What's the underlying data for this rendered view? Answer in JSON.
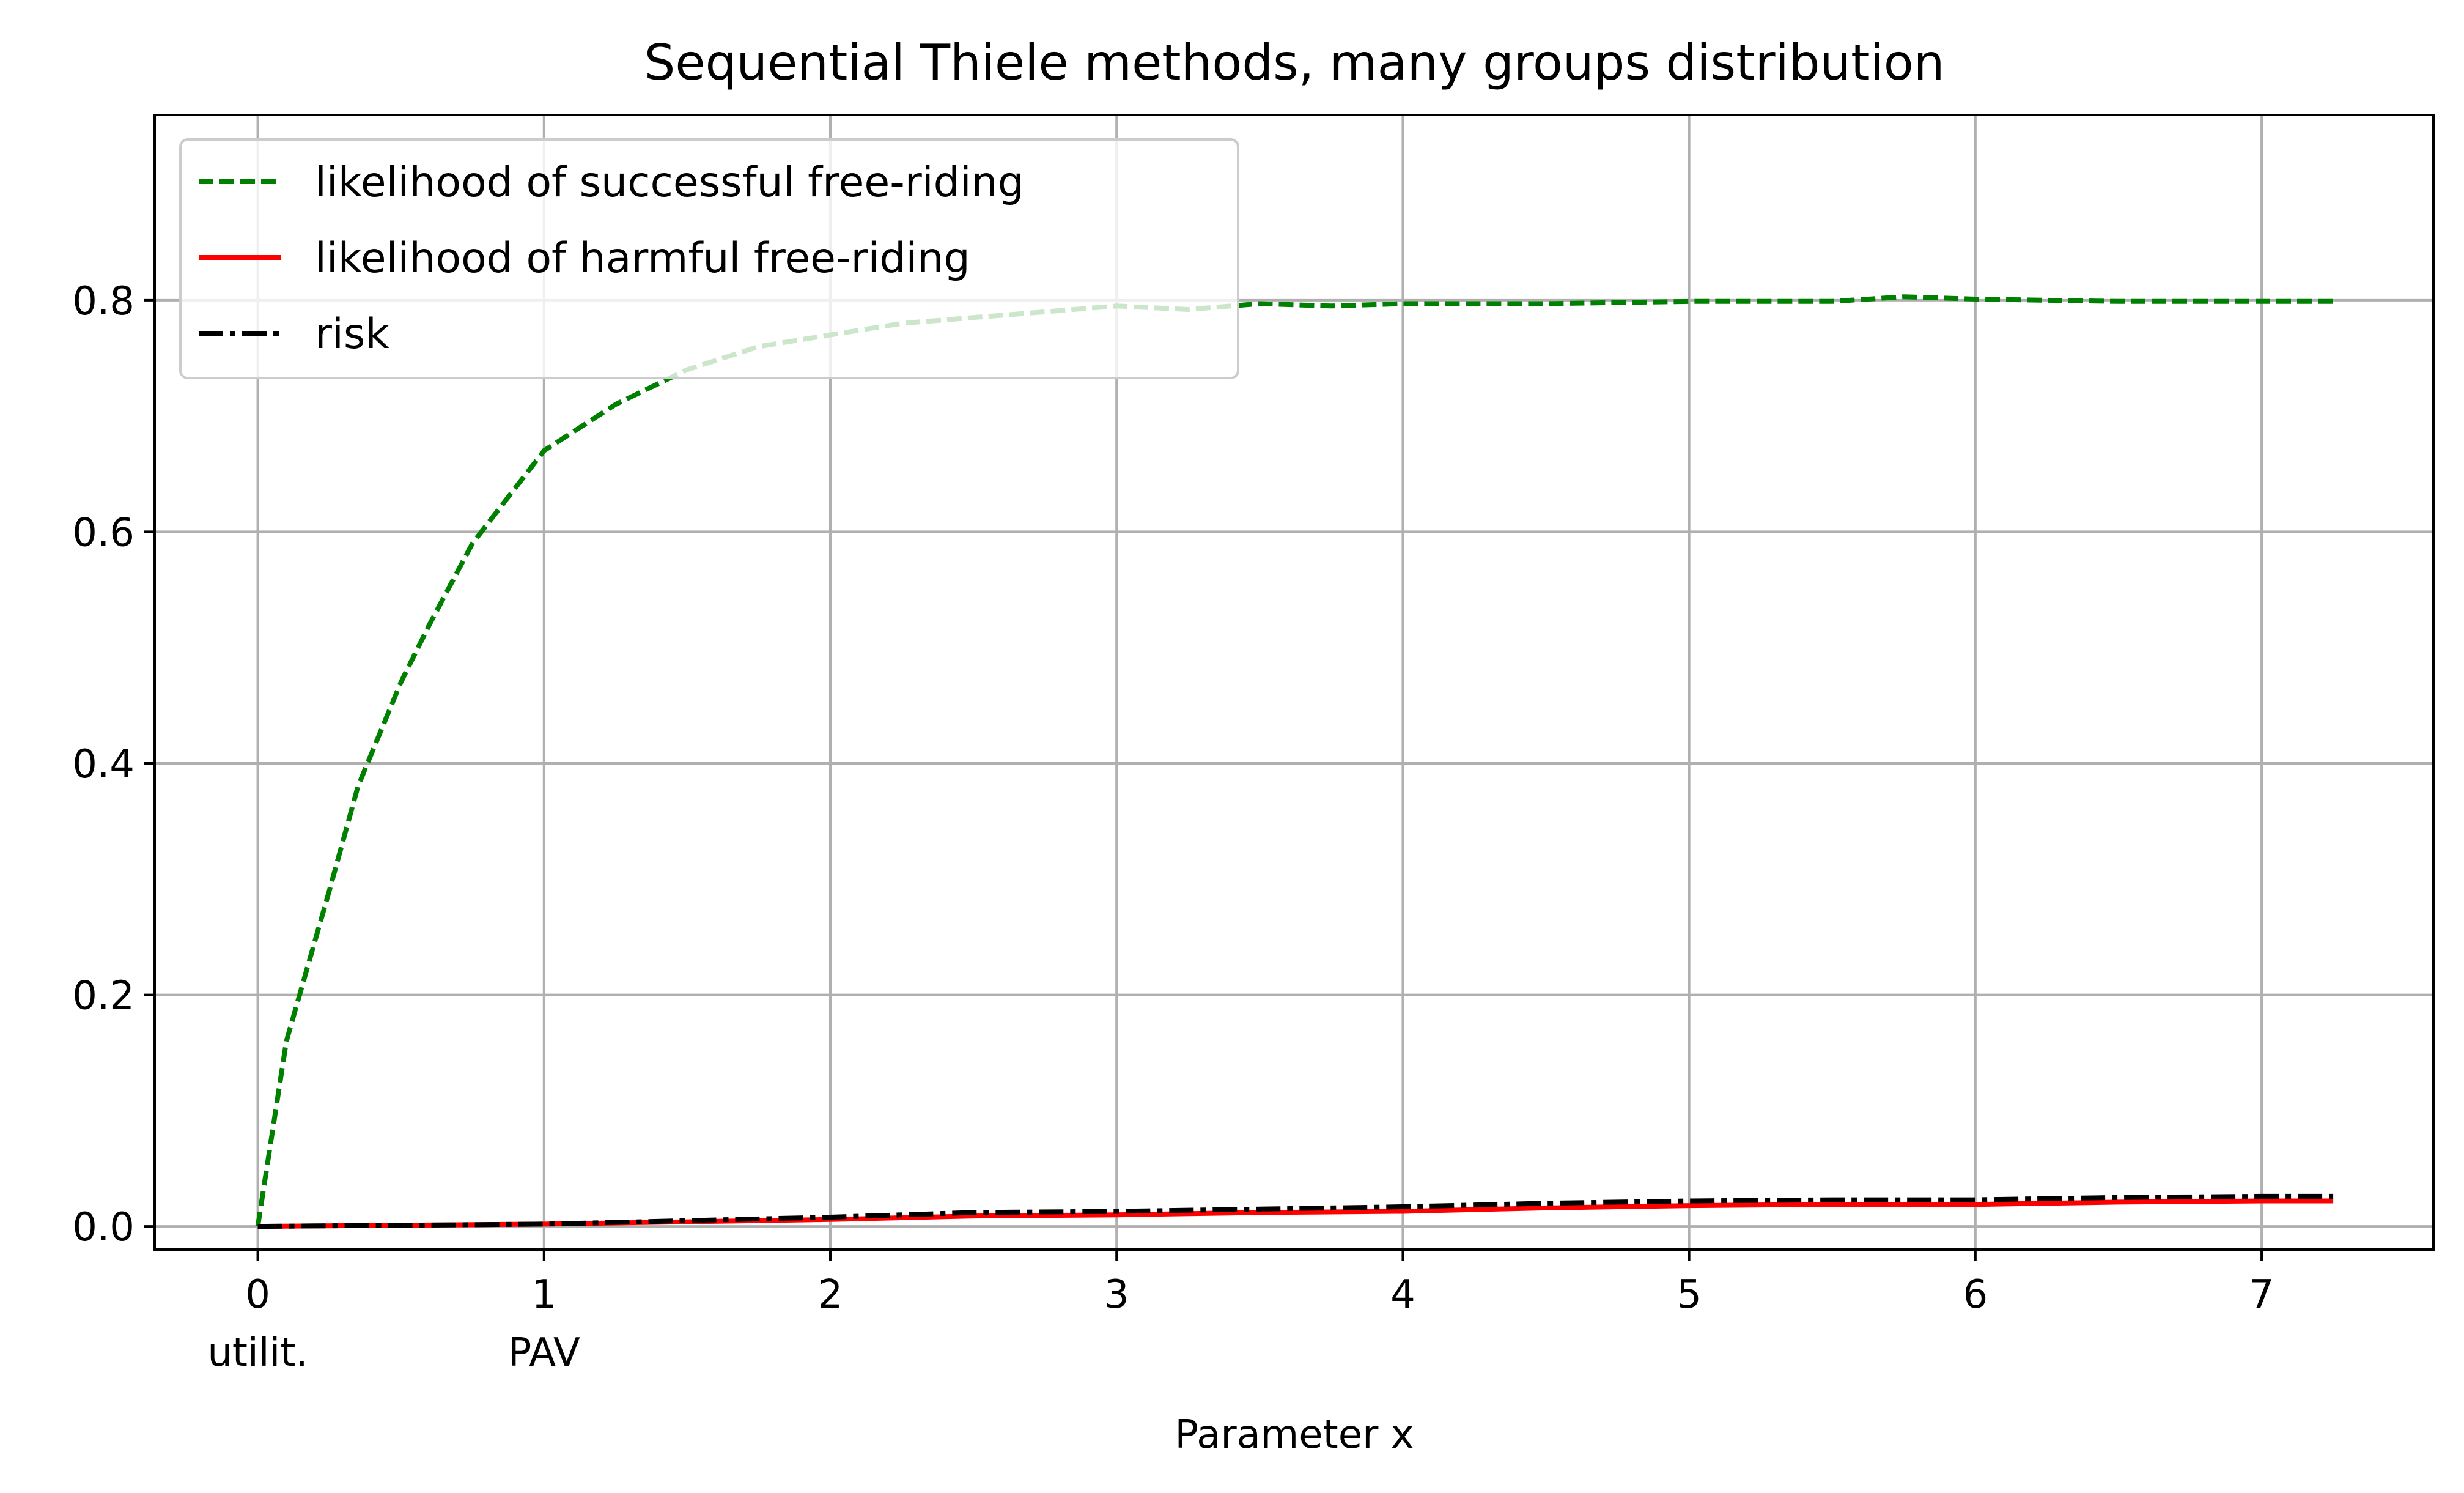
{
  "chart_data": {
    "type": "line",
    "title": "Sequential Thiele methods, many groups distribution",
    "xlabel": "Parameter x",
    "ylabel": "",
    "xlim": [
      -0.36,
      7.6
    ],
    "ylim": [
      -0.02,
      0.96
    ],
    "xticks": [
      0,
      1,
      2,
      3,
      4,
      5,
      6,
      7
    ],
    "xtick_labels": [
      "0",
      "1",
      "2",
      "3",
      "4",
      "5",
      "6",
      "7"
    ],
    "xtick_sublabels": [
      {
        "x": 0,
        "label": "utilit."
      },
      {
        "x": 1,
        "label": "PAV"
      }
    ],
    "yticks": [
      0.0,
      0.2,
      0.4,
      0.6,
      0.8
    ],
    "ytick_labels": [
      "0.0",
      "0.2",
      "0.4",
      "0.6",
      "0.8"
    ],
    "grid": true,
    "legend_position": "top-left",
    "series": [
      {
        "name": "likelihood of successful free-riding",
        "color": "#008000",
        "style": "dashed",
        "x": [
          0,
          0.1,
          0.25,
          0.35,
          0.5,
          0.6,
          0.75,
          1.0,
          1.25,
          1.5,
          1.75,
          2.0,
          2.25,
          2.5,
          2.75,
          3.0,
          3.25,
          3.5,
          3.75,
          4.0,
          4.5,
          5.0,
          5.5,
          5.75,
          6.0,
          6.5,
          7.0,
          7.25
        ],
        "y": [
          0.0,
          0.16,
          0.29,
          0.38,
          0.47,
          0.52,
          0.59,
          0.67,
          0.71,
          0.74,
          0.76,
          0.77,
          0.78,
          0.785,
          0.79,
          0.795,
          0.792,
          0.797,
          0.795,
          0.797,
          0.797,
          0.799,
          0.799,
          0.803,
          0.801,
          0.799,
          0.799,
          0.799
        ]
      },
      {
        "name": "likelihood of harmful free-riding",
        "color": "#ff0000",
        "style": "solid",
        "x": [
          0,
          0.5,
          1.0,
          1.5,
          2.0,
          2.5,
          3.0,
          3.5,
          4.0,
          4.5,
          5.0,
          5.5,
          6.0,
          6.5,
          7.0,
          7.25
        ],
        "y": [
          0.0,
          0.001,
          0.002,
          0.004,
          0.006,
          0.009,
          0.01,
          0.012,
          0.013,
          0.016,
          0.018,
          0.019,
          0.019,
          0.021,
          0.022,
          0.022
        ]
      },
      {
        "name": "risk",
        "color": "#000000",
        "style": "dashdot",
        "x": [
          0,
          0.5,
          1.0,
          1.5,
          2.0,
          2.5,
          3.0,
          3.5,
          4.0,
          4.5,
          5.0,
          5.5,
          6.0,
          6.5,
          7.0,
          7.25
        ],
        "y": [
          0.0,
          0.001,
          0.002,
          0.005,
          0.008,
          0.012,
          0.013,
          0.015,
          0.017,
          0.02,
          0.022,
          0.023,
          0.023,
          0.025,
          0.026,
          0.026
        ]
      }
    ]
  }
}
